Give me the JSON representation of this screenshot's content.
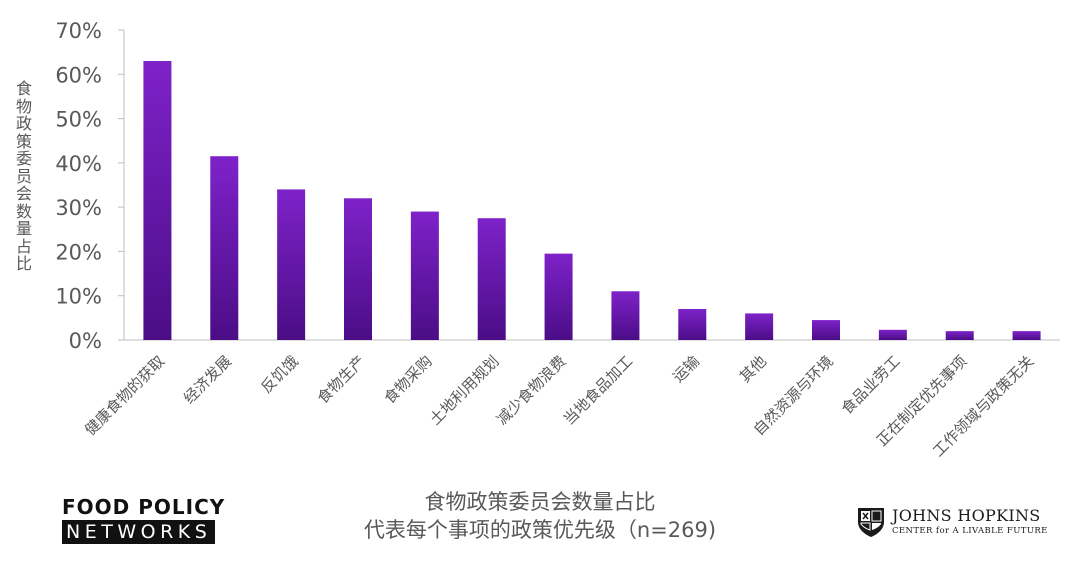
{
  "chart_data": {
    "type": "bar",
    "ylabel": "食物政策委员会数量占比",
    "yticks": [
      "0%",
      "10%",
      "20%",
      "30%",
      "40%",
      "50%",
      "60%",
      "70%"
    ],
    "ylim": [
      0,
      70
    ],
    "categories": [
      "健康食物的获取",
      "经济发展",
      "反饥饿",
      "食物生产",
      "食物采购",
      "土地利用规划",
      "减少食物浪费",
      "当地食品加工",
      "运输",
      "其他",
      "自然资源与环境",
      "食品业劳工",
      "正在制定优先事项",
      "工作领域与政策无关"
    ],
    "values": [
      63,
      41.5,
      34,
      32,
      29,
      27.5,
      19.5,
      11,
      7,
      6,
      4.5,
      2.3,
      2,
      2
    ],
    "colors": {
      "bar_light": "#7e22c9",
      "bar_dark": "#4b0d86",
      "axis": "#bfbfbf",
      "text": "#595959"
    },
    "grid": false,
    "legend": "none"
  },
  "caption": {
    "line1": "食物政策委员会数量占比",
    "line2": "代表每个事项的政策优先级（n=269)"
  },
  "logos": {
    "fpn_top": "FOOD POLICY",
    "fpn_bottom": "NETWORKS",
    "jh_name": "JOHNS HOPKINS",
    "jh_sub": "CENTER for A LIVABLE FUTURE"
  }
}
